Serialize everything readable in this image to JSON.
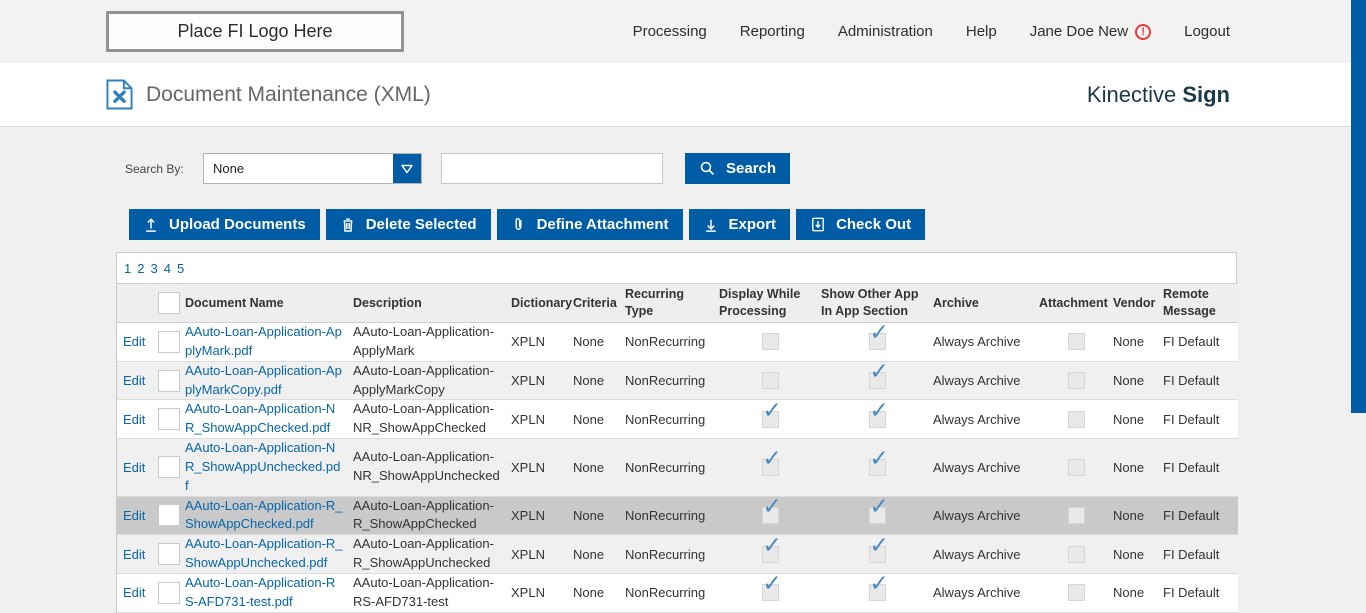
{
  "topbar": {
    "logo_text": "Place FI Logo Here",
    "nav": [
      {
        "label": "Processing",
        "alert": false
      },
      {
        "label": "Reporting",
        "alert": false
      },
      {
        "label": "Administration",
        "alert": false
      },
      {
        "label": "Help",
        "alert": false
      },
      {
        "label": "Jane Doe New",
        "alert": true
      },
      {
        "label": "Logout",
        "alert": false
      }
    ]
  },
  "titlebar": {
    "title": "Document Maintenance (XML)",
    "brand_regular": "Kinective",
    "brand_bold": "Sign"
  },
  "search": {
    "label": "Search By:",
    "selected_option": "None",
    "input_value": "",
    "button_label": "Search"
  },
  "toolbar": [
    {
      "label": "Upload Documents",
      "icon": "upload-icon"
    },
    {
      "label": "Delete Selected",
      "icon": "trash-icon"
    },
    {
      "label": "Define Attachment",
      "icon": "paperclip-icon"
    },
    {
      "label": "Export",
      "icon": "download-icon"
    },
    {
      "label": "Check Out",
      "icon": "checkout-icon"
    }
  ],
  "pagination": [
    "1",
    "2",
    "3",
    "4",
    "5"
  ],
  "table": {
    "edit_label": "Edit",
    "columns": [
      "Document Name",
      "Description",
      "Dictionary",
      "Criteria",
      "Recurring Type",
      "Display While Processing",
      "Show Other App In App Section",
      "Archive",
      "Attachment",
      "Vendor",
      "Remote Message"
    ],
    "rows": [
      {
        "name": "AAuto-Loan-Application-ApplyMark.pdf",
        "description": "AAuto-Loan-Application-ApplyMark",
        "dictionary": "XPLN",
        "criteria": "None",
        "recurring_type": "NonRecurring",
        "display_while_processing": false,
        "show_other_app": true,
        "archive": "Always Archive",
        "attachment": false,
        "vendor": "None",
        "remote_message": "FI Default",
        "selected": false
      },
      {
        "name": "AAuto-Loan-Application-ApplyMarkCopy.pdf",
        "description": "AAuto-Loan-Application-ApplyMarkCopy",
        "dictionary": "XPLN",
        "criteria": "None",
        "recurring_type": "NonRecurring",
        "display_while_processing": false,
        "show_other_app": true,
        "archive": "Always Archive",
        "attachment": false,
        "vendor": "None",
        "remote_message": "FI Default",
        "selected": false
      },
      {
        "name": "AAuto-Loan-Application-NR_ShowAppChecked.pdf",
        "description": "AAuto-Loan-Application-NR_ShowAppChecked",
        "dictionary": "XPLN",
        "criteria": "None",
        "recurring_type": "NonRecurring",
        "display_while_processing": true,
        "show_other_app": true,
        "archive": "Always Archive",
        "attachment": false,
        "vendor": "None",
        "remote_message": "FI Default",
        "selected": false
      },
      {
        "name": "AAuto-Loan-Application-NR_ShowAppUnchecked.pdf",
        "description": "AAuto-Loan-Application-NR_ShowAppUnchecked",
        "dictionary": "XPLN",
        "criteria": "None",
        "recurring_type": "NonRecurring",
        "display_while_processing": true,
        "show_other_app": true,
        "archive": "Always Archive",
        "attachment": false,
        "vendor": "None",
        "remote_message": "FI Default",
        "selected": false
      },
      {
        "name": "AAuto-Loan-Application-R_ShowAppChecked.pdf",
        "description": "AAuto-Loan-Application-R_ShowAppChecked",
        "dictionary": "XPLN",
        "criteria": "None",
        "recurring_type": "NonRecurring",
        "display_while_processing": true,
        "show_other_app": true,
        "archive": "Always Archive",
        "attachment": false,
        "vendor": "None",
        "remote_message": "FI Default",
        "selected": true
      },
      {
        "name": "AAuto-Loan-Application-R_ShowAppUnchecked.pdf",
        "description": "AAuto-Loan-Application-R_ShowAppUnchecked",
        "dictionary": "XPLN",
        "criteria": "None",
        "recurring_type": "NonRecurring",
        "display_while_processing": true,
        "show_other_app": true,
        "archive": "Always Archive",
        "attachment": false,
        "vendor": "None",
        "remote_message": "FI Default",
        "selected": false
      },
      {
        "name": "AAuto-Loan-Application-RS-AFD731-test.pdf",
        "description": "AAuto-Loan-Application-RS-AFD731-test",
        "dictionary": "XPLN",
        "criteria": "None",
        "recurring_type": "NonRecurring",
        "display_while_processing": true,
        "show_other_app": true,
        "archive": "Always Archive",
        "attachment": false,
        "vendor": "None",
        "remote_message": "FI Default",
        "selected": false
      }
    ]
  },
  "colors": {
    "accent_blue": "#005ca4",
    "link_blue": "#0765a9",
    "check_blue": "#4a8ac2",
    "selected_row": "#c9c9c9",
    "stripe_gray": "#f0f0f0",
    "brand_dark": "#1c3a4a",
    "alert_red": "#e23b3b"
  }
}
